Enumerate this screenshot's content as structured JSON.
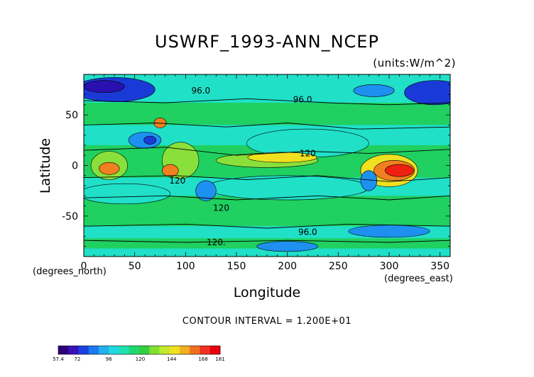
{
  "chart_data": {
    "type": "contour-map",
    "title": "USWRF_1993-ANN_NCEP",
    "units": "(units:W/m^2)",
    "xlabel": "Longitude",
    "ylabel": "Latitude",
    "x_units_label": "(degrees_north)",
    "x_units_label_east": "(degrees_east)",
    "xlim": [
      0,
      360
    ],
    "ylim": [
      -90,
      90
    ],
    "x_ticks": [
      "0",
      "50",
      "100",
      "150",
      "200",
      "250",
      "300",
      "350"
    ],
    "x_tick_values": [
      0,
      50,
      100,
      150,
      200,
      250,
      300,
      350
    ],
    "y_ticks": [
      "50",
      "0",
      "-50"
    ],
    "y_tick_values": [
      50,
      0,
      -50
    ],
    "contour_interval": "CONTOUR INTERVAL = 1.200E+01",
    "contour_labels": [
      {
        "text": "96.0",
        "lon": 115,
        "lat": 74
      },
      {
        "text": "96.0",
        "lon": 215,
        "lat": 65
      },
      {
        "text": "120",
        "lon": 220,
        "lat": 12
      },
      {
        "text": "120",
        "lon": 92,
        "lat": -15
      },
      {
        "text": "120",
        "lon": 135,
        "lat": -42
      },
      {
        "text": "96.0",
        "lon": 220,
        "lat": -66
      },
      {
        "text": "120.",
        "lon": 130,
        "lat": -76
      }
    ],
    "colorbar": {
      "min": 57.4,
      "max": 181,
      "tick_labels": [
        "57.4",
        "72",
        "96",
        "120",
        "144",
        "168",
        "181"
      ],
      "tick_values": [
        57.4,
        72,
        96,
        120,
        144,
        168,
        181
      ],
      "colors": [
        "#2a007a",
        "#3a10b8",
        "#1a40e0",
        "#1e78f0",
        "#20b0f0",
        "#20d8e0",
        "#20e0b0",
        "#20d870",
        "#30d040",
        "#80e030",
        "#c0e830",
        "#f0e020",
        "#f0b020",
        "#f07020",
        "#f03020",
        "#e80010"
      ]
    },
    "field_colors": {
      "very_low": "#1a3ad8",
      "low": "#1e90f0",
      "mid_low": "#20e0c8",
      "mid": "#20d060",
      "mid_high": "#8ae03a",
      "high": "#f0e020",
      "very_high": "#f08020",
      "max": "#f02010"
    }
  }
}
